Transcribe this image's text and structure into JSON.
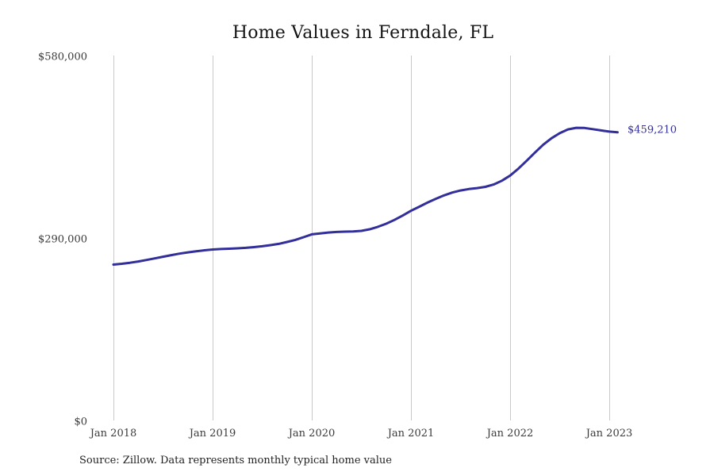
{
  "title": "Home Values in Ferndale, FL",
  "source_note": "Source: Zillow. Data represents monthly typical home value",
  "colors": {
    "line": "#322e9a",
    "annotation": "#322e9a",
    "grid": "#c9c9c9",
    "tick_text": "#3b3b3b",
    "title_text": "#141414"
  },
  "chart_data": {
    "type": "line",
    "title": "Home Values in Ferndale, FL",
    "xlabel": "",
    "ylabel": "",
    "x_tick_labels": [
      "Jan 2018",
      "Jan 2019",
      "Jan 2020",
      "Jan 2021",
      "Jan 2022",
      "Jan 2023"
    ],
    "y_ticks": [
      {
        "value": 0,
        "label": "$0"
      },
      {
        "value": 290000,
        "label": "$290,000"
      },
      {
        "value": 580000,
        "label": "$580,000"
      }
    ],
    "ylim": [
      0,
      580000
    ],
    "grid": "vertical-only",
    "legend": "none",
    "frequency": "monthly",
    "series": [
      {
        "name": "Typical home value",
        "start": "Jan 2018",
        "end": "Feb 2023",
        "values": [
          249000,
          250300,
          251900,
          253900,
          256300,
          258900,
          261500,
          264000,
          266400,
          268400,
          270100,
          271700,
          273000,
          273700,
          274300,
          274900,
          275600,
          276800,
          278100,
          279900,
          281900,
          285000,
          288200,
          292500,
          297000,
          298600,
          300000,
          300900,
          301300,
          301600,
          302600,
          305100,
          309000,
          314000,
          320000,
          327000,
          334500,
          341000,
          347500,
          353500,
          359000,
          363500,
          366800,
          369000,
          370600,
          372600,
          376200,
          382300,
          390500,
          401500,
          414000,
          427000,
          439500,
          449800,
          457800,
          463900,
          466400,
          466200,
          464300,
          462200,
          460300,
          459210
        ]
      }
    ],
    "annotation": {
      "text": "$459,210",
      "value": 459210
    }
  }
}
